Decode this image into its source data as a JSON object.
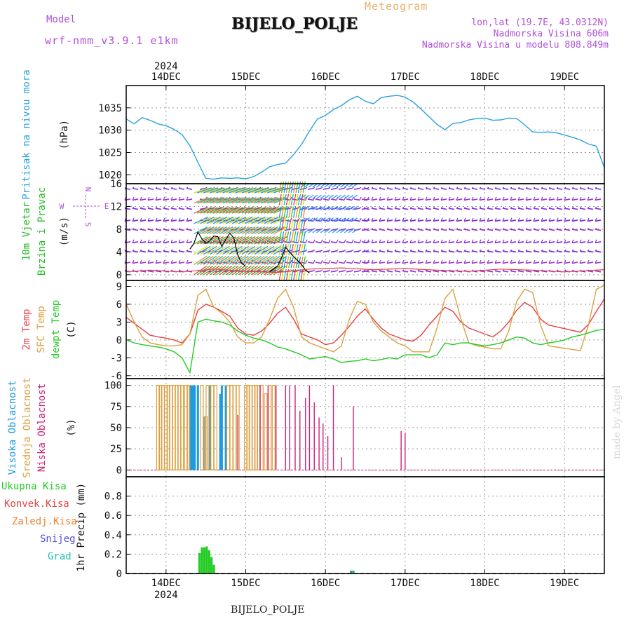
{
  "header": {
    "model_label": "Model",
    "model_name": "wrf-nmm_v3.9.1 e1km",
    "product": "Meteogram",
    "station": "BIJELO_POLJE",
    "lonlat": "lon,lat (19.7E, 43.0312N)",
    "altitude": "Nadmorska Visina 606m",
    "model_altitude": "Nadmorska Visina u modelu 808.849m"
  },
  "footer": {
    "station": "BIJELO_POLJE",
    "credit": "made by Angel"
  },
  "time_axis": {
    "year": "2024",
    "days": [
      "14DEC",
      "15DEC",
      "16DEC",
      "17DEC",
      "18DEC",
      "19DEC"
    ],
    "day_positions": [
      14,
      15,
      16,
      17,
      18,
      19
    ],
    "range": [
      13.5,
      19.5
    ]
  },
  "colors": {
    "pressure": "#29a3e0",
    "wind_label": "#22bb22",
    "t2m": "#e84040",
    "sfc": "#dda040",
    "dewpt": "#22cc22",
    "cloud_high": "#1e9be0",
    "cloud_mid": "#dda040",
    "cloud_low": "#cc2277",
    "rain_total": "#22cc22",
    "rain_conv": "#e84040",
    "rain_frz": "#f08030",
    "snow": "#5050e0",
    "hail": "#20c0b0",
    "axis_purple": "#b04fd8"
  },
  "chart_data": [
    {
      "type": "line",
      "panel": "pressure",
      "ylabel_main": "Pritisak na nivou mora",
      "ylabel_unit": "(hPa)",
      "ylim": [
        1018,
        1040
      ],
      "yticks": [
        1020,
        1025,
        1030,
        1035
      ],
      "series": [
        {
          "name": "",
          "x": [
            13.5,
            13.6,
            13.7,
            13.8,
            13.9,
            14.0,
            14.1,
            14.2,
            14.3,
            14.4,
            14.5,
            14.6,
            14.7,
            14.8,
            14.9,
            15.0,
            15.1,
            15.2,
            15.3,
            15.4,
            15.5,
            15.6,
            15.7,
            15.8,
            15.9,
            16.0,
            16.1,
            16.2,
            16.3,
            16.4,
            16.5,
            16.6,
            16.7,
            16.8,
            16.9,
            17.0,
            17.1,
            17.2,
            17.3,
            17.4,
            17.5,
            17.6,
            17.7,
            17.8,
            17.9,
            18.0,
            18.1,
            18.2,
            18.3,
            18.4,
            18.5,
            18.6,
            18.7,
            18.8,
            18.9,
            19.0,
            19.1,
            19.2,
            19.3,
            19.4,
            19.5
          ],
          "values": [
            1032.5,
            1031.4,
            1032.8,
            1032.2,
            1031.4,
            1031.0,
            1030.2,
            1029.0,
            1026.5,
            1022.8,
            1019.2,
            1019.0,
            1019.3,
            1019.2,
            1019.3,
            1019.1,
            1019.6,
            1020.6,
            1021.8,
            1022.3,
            1022.6,
            1024.5,
            1026.8,
            1029.8,
            1032.5,
            1033.3,
            1034.6,
            1035.5,
            1036.8,
            1037.6,
            1036.5,
            1035.9,
            1037.3,
            1037.6,
            1037.8,
            1037.4,
            1036.3,
            1034.7,
            1033.0,
            1031.3,
            1030.1,
            1031.5,
            1031.7,
            1032.3,
            1032.6,
            1032.7,
            1032.2,
            1032.3,
            1032.7,
            1032.6,
            1031.2,
            1029.6,
            1029.5,
            1029.6,
            1029.4,
            1028.9,
            1028.4,
            1027.8,
            1026.9,
            1026.4,
            1021.6
          ]
        }
      ]
    },
    {
      "type": "line",
      "panel": "wind",
      "ylabel_main": "10m Vjetar",
      "ylabel_sub": "Brzina i Pravac",
      "ylabel_unit": "(m/s)",
      "direction_key": [
        "N",
        "S",
        "W",
        "E"
      ],
      "ylim": [
        -1,
        16
      ],
      "yticks": [
        0,
        4,
        8,
        12,
        16
      ],
      "barb_levels": [
        0.5,
        2.2,
        4.0,
        5.8,
        7.8,
        9.6,
        11.5,
        13.3,
        15.0
      ],
      "series": [
        {
          "name": "",
          "x": [
            14.3,
            14.35,
            14.4,
            14.45,
            14.5,
            14.55,
            14.6,
            14.65,
            14.7,
            14.75,
            14.8,
            14.85,
            14.9,
            14.95,
            15.0
          ],
          "values": [
            4.5,
            5.5,
            7.5,
            6.3,
            5.5,
            6.0,
            6.8,
            6.7,
            5.0,
            6.2,
            7.3,
            6.5,
            3.5,
            2.0,
            1.5
          ]
        },
        {
          "name": "",
          "x": [
            15.3,
            15.35,
            15.4,
            15.45,
            15.5,
            15.55,
            15.6,
            15.65,
            15.7,
            15.75,
            15.8
          ],
          "values": [
            0.5,
            1.0,
            1.5,
            3.0,
            4.8,
            4.0,
            3.2,
            2.5,
            1.8,
            0.8,
            0.3
          ]
        },
        {
          "name": "",
          "x": [
            13.5,
            13.8,
            14.2,
            14.6,
            15.0,
            15.4,
            15.8,
            16.2,
            16.6,
            17.0,
            17.4,
            17.8,
            18.2,
            18.6,
            19.0,
            19.5
          ],
          "values": [
            0.5,
            0.8,
            0.5,
            1.0,
            0.6,
            0.4,
            1.0,
            1.2,
            0.9,
            1.1,
            0.8,
            0.6,
            1.0,
            0.8,
            0.5,
            0.9
          ]
        }
      ]
    },
    {
      "type": "line",
      "panel": "temperature",
      "ylabel_main": [
        "2m Temp",
        "SFC Temp",
        "dewpt Temp"
      ],
      "ylabel_unit": "(C)",
      "ylim": [
        -6.5,
        10
      ],
      "yticks": [
        -6,
        -3,
        0,
        3,
        6,
        9
      ],
      "series": [
        {
          "name": "2m Temp",
          "x": [
            13.5,
            13.6,
            13.7,
            13.8,
            13.9,
            14.0,
            14.1,
            14.2,
            14.3,
            14.4,
            14.5,
            14.6,
            14.7,
            14.8,
            14.9,
            15.0,
            15.1,
            15.2,
            15.3,
            15.4,
            15.5,
            15.6,
            15.7,
            15.8,
            15.9,
            16.0,
            16.1,
            16.2,
            16.3,
            16.4,
            16.5,
            16.6,
            16.7,
            16.8,
            16.9,
            17.0,
            17.1,
            17.2,
            17.3,
            17.4,
            17.5,
            17.6,
            17.7,
            17.8,
            17.9,
            18.0,
            18.1,
            18.2,
            18.3,
            18.4,
            18.5,
            18.6,
            18.7,
            18.8,
            18.9,
            19.0,
            19.1,
            19.2,
            19.3,
            19.4,
            19.5
          ],
          "values": [
            3.8,
            2.8,
            1.8,
            0.8,
            0.5,
            0.3,
            0.0,
            -0.5,
            1.0,
            5.0,
            6.0,
            5.5,
            4.8,
            4.0,
            2.0,
            1.0,
            0.8,
            1.5,
            2.8,
            4.5,
            5.5,
            3.5,
            1.0,
            0.5,
            0.0,
            -0.8,
            -0.5,
            0.8,
            2.3,
            4.0,
            5.2,
            3.5,
            2.0,
            1.0,
            0.5,
            0.0,
            -0.2,
            0.8,
            2.5,
            4.0,
            5.5,
            4.8,
            3.0,
            2.0,
            1.5,
            1.0,
            0.5,
            1.5,
            3.0,
            5.0,
            6.3,
            5.5,
            3.5,
            2.5,
            2.2,
            1.9,
            1.6,
            1.3,
            2.6,
            4.8,
            6.9
          ]
        },
        {
          "name": "SFC Temp",
          "x": [
            13.5,
            13.6,
            13.7,
            13.8,
            13.9,
            14.0,
            14.1,
            14.2,
            14.3,
            14.4,
            14.5,
            14.6,
            14.7,
            14.8,
            14.9,
            15.0,
            15.1,
            15.2,
            15.3,
            15.4,
            15.5,
            15.6,
            15.7,
            15.8,
            15.9,
            16.0,
            16.1,
            16.2,
            16.3,
            16.4,
            16.5,
            16.6,
            16.7,
            16.8,
            16.9,
            17.0,
            17.1,
            17.2,
            17.3,
            17.4,
            17.5,
            17.6,
            17.7,
            17.8,
            17.9,
            18.0,
            18.1,
            18.2,
            18.3,
            18.4,
            18.5,
            18.6,
            18.7,
            18.8,
            18.9,
            19.0,
            19.1,
            19.2,
            19.3,
            19.4,
            19.5
          ],
          "values": [
            6.0,
            3.0,
            0.5,
            -0.5,
            -0.8,
            -1.0,
            -1.0,
            -0.8,
            1.0,
            7.5,
            8.5,
            5.5,
            4.5,
            3.0,
            0.5,
            -0.5,
            -0.5,
            0.5,
            3.5,
            7.0,
            8.5,
            5.5,
            0.5,
            -0.5,
            -1.0,
            -1.5,
            -2.0,
            -1.0,
            3.5,
            6.5,
            6.0,
            3.0,
            1.5,
            0.5,
            -0.5,
            -1.0,
            -2.0,
            -2.0,
            -2.0,
            2.0,
            7.0,
            8.5,
            3.5,
            -0.5,
            -1.0,
            -1.2,
            -1.5,
            -1.5,
            1.5,
            6.5,
            8.5,
            8.0,
            2.5,
            -1.0,
            -1.2,
            -1.4,
            -1.6,
            -1.8,
            2.5,
            8.5,
            9.2
          ]
        },
        {
          "name": "dewpt Temp",
          "x": [
            13.5,
            13.6,
            13.7,
            13.8,
            13.9,
            14.0,
            14.1,
            14.2,
            14.3,
            14.4,
            14.5,
            14.6,
            14.7,
            14.8,
            14.9,
            15.0,
            15.1,
            15.2,
            15.3,
            15.4,
            15.5,
            15.6,
            15.7,
            15.8,
            15.9,
            16.0,
            16.1,
            16.2,
            16.3,
            16.4,
            16.5,
            16.6,
            16.7,
            16.8,
            16.9,
            17.0,
            17.1,
            17.2,
            17.3,
            17.4,
            17.5,
            17.6,
            17.7,
            17.8,
            17.9,
            18.0,
            18.1,
            18.2,
            18.3,
            18.4,
            18.5,
            18.6,
            18.7,
            18.8,
            18.9,
            19.0,
            19.1,
            19.2,
            19.3,
            19.4,
            19.5
          ],
          "values": [
            0.0,
            -0.5,
            -0.8,
            -1.0,
            -1.2,
            -1.5,
            -2.0,
            -3.0,
            -5.5,
            3.0,
            3.5,
            3.2,
            3.0,
            2.5,
            1.5,
            0.8,
            0.3,
            0.0,
            -0.5,
            -1.2,
            -1.5,
            -2.0,
            -2.5,
            -3.2,
            -3.0,
            -2.8,
            -3.2,
            -3.8,
            -3.6,
            -3.5,
            -3.2,
            -3.5,
            -3.3,
            -3.0,
            -3.2,
            -2.5,
            -2.5,
            -2.5,
            -3.0,
            -2.5,
            -0.5,
            -0.8,
            -0.5,
            -0.5,
            -0.8,
            -1.0,
            -0.8,
            -0.5,
            0.0,
            0.5,
            0.3,
            -0.5,
            -0.8,
            -0.5,
            -0.3,
            0.0,
            0.5,
            0.8,
            1.2,
            1.6,
            1.8
          ]
        }
      ]
    },
    {
      "type": "bar",
      "panel": "clouds",
      "ylabel_main": [
        "Visoka Oblacnost",
        "Srednja Oblacnost",
        "Niska Oblacnost"
      ],
      "ylabel_unit": "(%)",
      "ylim": [
        -8,
        108
      ],
      "yticks": [
        0,
        25,
        50,
        75,
        100
      ],
      "series": [
        {
          "name": "Visoka Oblacnost",
          "x": [
            14.3,
            14.32,
            14.34,
            14.36,
            14.4,
            14.48,
            14.55,
            14.68,
            14.7,
            14.75
          ],
          "values": [
            100,
            100,
            100,
            100,
            100,
            63,
            100,
            90,
            100,
            100
          ]
        },
        {
          "name": "Srednja Oblacnost",
          "x": [
            13.9,
            13.93,
            13.96,
            14.0,
            14.03,
            14.06,
            14.1,
            14.13,
            14.17,
            14.2,
            14.25,
            14.28,
            14.45,
            14.5,
            14.52,
            14.58,
            14.62,
            14.78,
            14.82,
            14.86,
            14.9,
            15.0,
            15.03,
            15.06,
            15.1,
            15.13,
            15.16,
            15.2,
            15.25,
            15.3,
            15.35
          ],
          "values": [
            100,
            100,
            100,
            100,
            100,
            100,
            100,
            100,
            100,
            100,
            100,
            100,
            100,
            63,
            100,
            100,
            100,
            100,
            100,
            100,
            100,
            100,
            100,
            100,
            100,
            100,
            100,
            100,
            90,
            100,
            100
          ]
        },
        {
          "name": "Niska Oblacnost",
          "x": [
            14.9,
            15.18,
            15.28,
            15.38,
            15.5,
            15.55,
            15.62,
            15.68,
            15.75,
            15.8,
            15.86,
            15.92,
            15.97,
            16.03,
            16.1,
            16.2,
            16.35,
            16.95,
            17.0
          ],
          "values": [
            65,
            100,
            100,
            100,
            100,
            100,
            100,
            70,
            85,
            100,
            80,
            62,
            55,
            40,
            100,
            15,
            75,
            46,
            44
          ]
        }
      ]
    },
    {
      "type": "bar",
      "panel": "precip",
      "ylabel_main": "1hr Precip (mm)",
      "legend": [
        "Ukupna Kisa",
        "Konvek.Kisa",
        "Zaledj.Kisa",
        "Snijeg",
        "Grad"
      ],
      "ylim": [
        0,
        1.0
      ],
      "yticks": [
        0,
        0.2,
        0.4,
        0.6,
        0.8
      ],
      "series": [
        {
          "name": "Ukupna Kisa",
          "x": [
            14.42,
            14.45,
            14.48,
            14.51,
            14.54,
            14.57,
            14.6,
            16.32,
            16.35
          ],
          "values": [
            0.21,
            0.27,
            0.27,
            0.28,
            0.24,
            0.17,
            0.09,
            0.03,
            0.03
          ]
        }
      ]
    }
  ]
}
